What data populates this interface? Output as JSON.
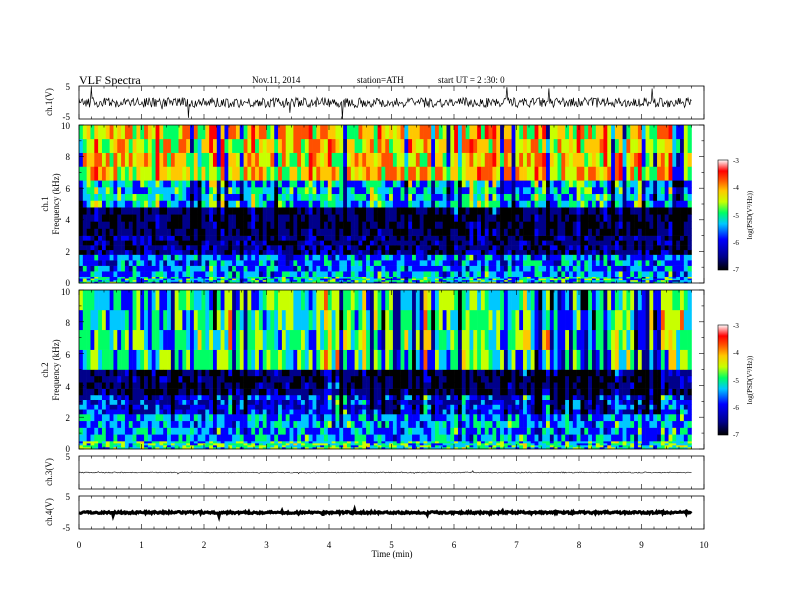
{
  "header": {
    "title": "VLF  Spectra",
    "date": "Nov.11, 2014",
    "station": "station=ATH",
    "start": "start  UT  =   2  :30: 0"
  },
  "chart_data": [
    {
      "type": "line",
      "panel": "ch1-waveform",
      "ylabel": "ch.1(V)",
      "ylim": [
        -5,
        5
      ],
      "yticks": [
        "5",
        "-5"
      ],
      "xlim": [
        0,
        10
      ],
      "trace_level_V": 0,
      "trace_noise_V": [
        -1.5,
        1.5
      ]
    },
    {
      "type": "heatmap",
      "panel": "ch1-spectrogram",
      "ylabel_line1": "ch.1",
      "ylabel_line2": "Frequency (kHz)",
      "ylim": [
        0,
        10
      ],
      "yticks": [
        "0",
        "2",
        "4",
        "6",
        "8",
        "10"
      ],
      "xlim": [
        0,
        10
      ],
      "data_end_min": 9.8,
      "colorbar": {
        "label": "log(PSD(V²/Hz))",
        "range": [
          -7,
          -3
        ],
        "ticks": [
          "-3",
          "-4",
          "-5",
          "-6",
          "-7"
        ]
      },
      "bands": [
        {
          "from_khz": 0,
          "to_khz": 0.4,
          "logpsd": -5.0
        },
        {
          "from_khz": 0.4,
          "to_khz": 1.8,
          "logpsd": -5.3
        },
        {
          "from_khz": 1.8,
          "to_khz": 3.0,
          "logpsd": -6.3
        },
        {
          "from_khz": 3.0,
          "to_khz": 4.8,
          "logpsd": -6.6
        },
        {
          "from_khz": 4.8,
          "to_khz": 6.5,
          "logpsd": -5.1
        },
        {
          "from_khz": 6.5,
          "to_khz": 10,
          "logpsd": -4.1
        }
      ]
    },
    {
      "type": "heatmap",
      "panel": "ch2-spectrogram",
      "ylabel_line1": "ch.2",
      "ylabel_line2": "Frequency (kHz)",
      "ylim": [
        0,
        10
      ],
      "yticks": [
        "0",
        "2",
        "4",
        "6",
        "8",
        "10"
      ],
      "xlim": [
        0,
        10
      ],
      "data_end_min": 9.8,
      "colorbar": {
        "label": "log(PSD(V²/Hz))",
        "range": [
          -7,
          -3
        ],
        "ticks": [
          "-3",
          "-4",
          "-5",
          "-6",
          "-7"
        ]
      },
      "bands": [
        {
          "from_khz": 0,
          "to_khz": 0.5,
          "logpsd": -4.8
        },
        {
          "from_khz": 0.5,
          "to_khz": 2.2,
          "logpsd": -5.2
        },
        {
          "from_khz": 2.2,
          "to_khz": 3.4,
          "logpsd": -5.7
        },
        {
          "from_khz": 3.4,
          "to_khz": 5.0,
          "logpsd": -6.5
        },
        {
          "from_khz": 5.0,
          "to_khz": 10,
          "logpsd": -4.8
        }
      ]
    },
    {
      "type": "line",
      "panel": "ch3-waveform",
      "ylabel": "ch.3(V)",
      "ylim": [
        -5,
        5
      ],
      "yticks": [
        "5"
      ],
      "xlim": [
        0,
        10
      ],
      "trace_level_V": 0,
      "trace_noise_V": [
        -0.15,
        0.15
      ]
    },
    {
      "type": "line",
      "panel": "ch4-waveform",
      "ylabel": "ch.4(V)",
      "ylim": [
        -5,
        5
      ],
      "yticks": [
        "5",
        "-5"
      ],
      "xlim": [
        0,
        10
      ],
      "trace_level_V": 0,
      "trace_noise_V": [
        -0.3,
        0.3
      ]
    }
  ],
  "xaxis": {
    "label": "Time  (min)",
    "ticks": [
      "0",
      "1",
      "2",
      "3",
      "4",
      "5",
      "6",
      "7",
      "8",
      "9",
      "10"
    ]
  },
  "colors": {
    "frame": "#000000",
    "colormap": [
      "#000000",
      "#00008b",
      "#0000ff",
      "#00c8ff",
      "#00ff64",
      "#c8ff00",
      "#ffc800",
      "#ff5000",
      "#ff0000",
      "#ffffff"
    ]
  }
}
